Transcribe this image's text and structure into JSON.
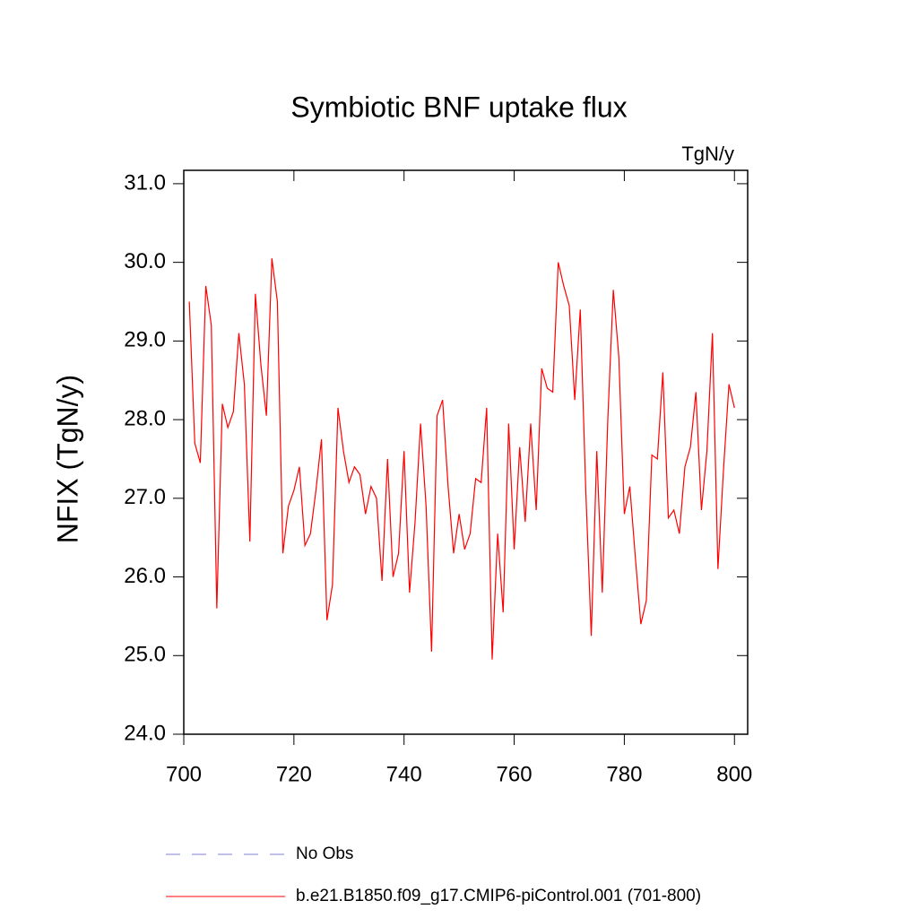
{
  "chart_data": {
    "type": "line",
    "title": "Symbiotic BNF uptake flux",
    "units": "TgN/y",
    "y_label": "NFIX  (TgN/y)",
    "x": [
      701,
      702,
      703,
      704,
      705,
      706,
      707,
      708,
      709,
      710,
      711,
      712,
      713,
      714,
      715,
      716,
      717,
      718,
      719,
      720,
      721,
      722,
      723,
      724,
      725,
      726,
      727,
      728,
      729,
      730,
      731,
      732,
      733,
      734,
      735,
      736,
      737,
      738,
      739,
      740,
      741,
      742,
      743,
      744,
      745,
      746,
      747,
      748,
      749,
      750,
      751,
      752,
      753,
      754,
      755,
      756,
      757,
      758,
      759,
      760,
      761,
      762,
      763,
      764,
      765,
      766,
      767,
      768,
      769,
      770,
      771,
      772,
      773,
      774,
      775,
      776,
      777,
      778,
      779,
      780,
      781,
      782,
      783,
      784,
      785,
      786,
      787,
      788,
      789,
      790,
      791,
      792,
      793,
      794,
      795,
      796,
      797,
      798,
      799,
      800
    ],
    "series": [
      {
        "name": "b.e21.B1850.f09_g17.CMIP6-piControl.001 (701-800)",
        "color": "#ff0000",
        "values": [
          29.5,
          27.7,
          27.45,
          29.7,
          29.2,
          25.6,
          28.2,
          27.9,
          28.1,
          29.1,
          28.45,
          26.45,
          29.6,
          28.7,
          28.05,
          30.05,
          29.5,
          26.3,
          26.9,
          27.1,
          27.4,
          26.4,
          26.55,
          27.1,
          27.75,
          25.45,
          25.9,
          28.15,
          27.6,
          27.2,
          27.4,
          27.3,
          26.8,
          27.15,
          27.0,
          25.95,
          27.5,
          26.0,
          26.3,
          27.6,
          25.8,
          26.7,
          27.95,
          26.9,
          25.05,
          28.05,
          28.25,
          27.15,
          26.3,
          26.8,
          26.35,
          26.55,
          27.25,
          27.2,
          28.15,
          24.95,
          26.55,
          25.55,
          27.95,
          26.35,
          27.65,
          26.7,
          27.95,
          26.85,
          28.65,
          28.4,
          28.35,
          30.0,
          29.7,
          29.45,
          28.25,
          29.4,
          27.1,
          25.25,
          27.6,
          25.8,
          28.0,
          29.65,
          28.8,
          26.8,
          27.15,
          26.25,
          25.4,
          25.7,
          27.55,
          27.5,
          28.6,
          26.75,
          26.85,
          26.55,
          27.4,
          27.65,
          28.35,
          26.85,
          27.6,
          29.1,
          26.1,
          27.35,
          28.45,
          28.15
        ]
      }
    ],
    "legend_extra": {
      "name": "No Obs",
      "color": "#7f7fcf"
    },
    "xlim": [
      700,
      802.4
    ],
    "xticks": [
      700,
      720,
      740,
      760,
      780,
      800
    ],
    "ylim": [
      24,
      31.17
    ],
    "yticks": [
      {
        "value": 24,
        "label": "24.0"
      },
      {
        "value": 25,
        "label": "25.0"
      },
      {
        "value": 26,
        "label": "26.0"
      },
      {
        "value": 27,
        "label": "27.0"
      },
      {
        "value": 28,
        "label": "28.0"
      },
      {
        "value": 29,
        "label": "29.0"
      },
      {
        "value": 30,
        "label": "30.0"
      },
      {
        "value": 31,
        "label": "31.0"
      }
    ]
  }
}
